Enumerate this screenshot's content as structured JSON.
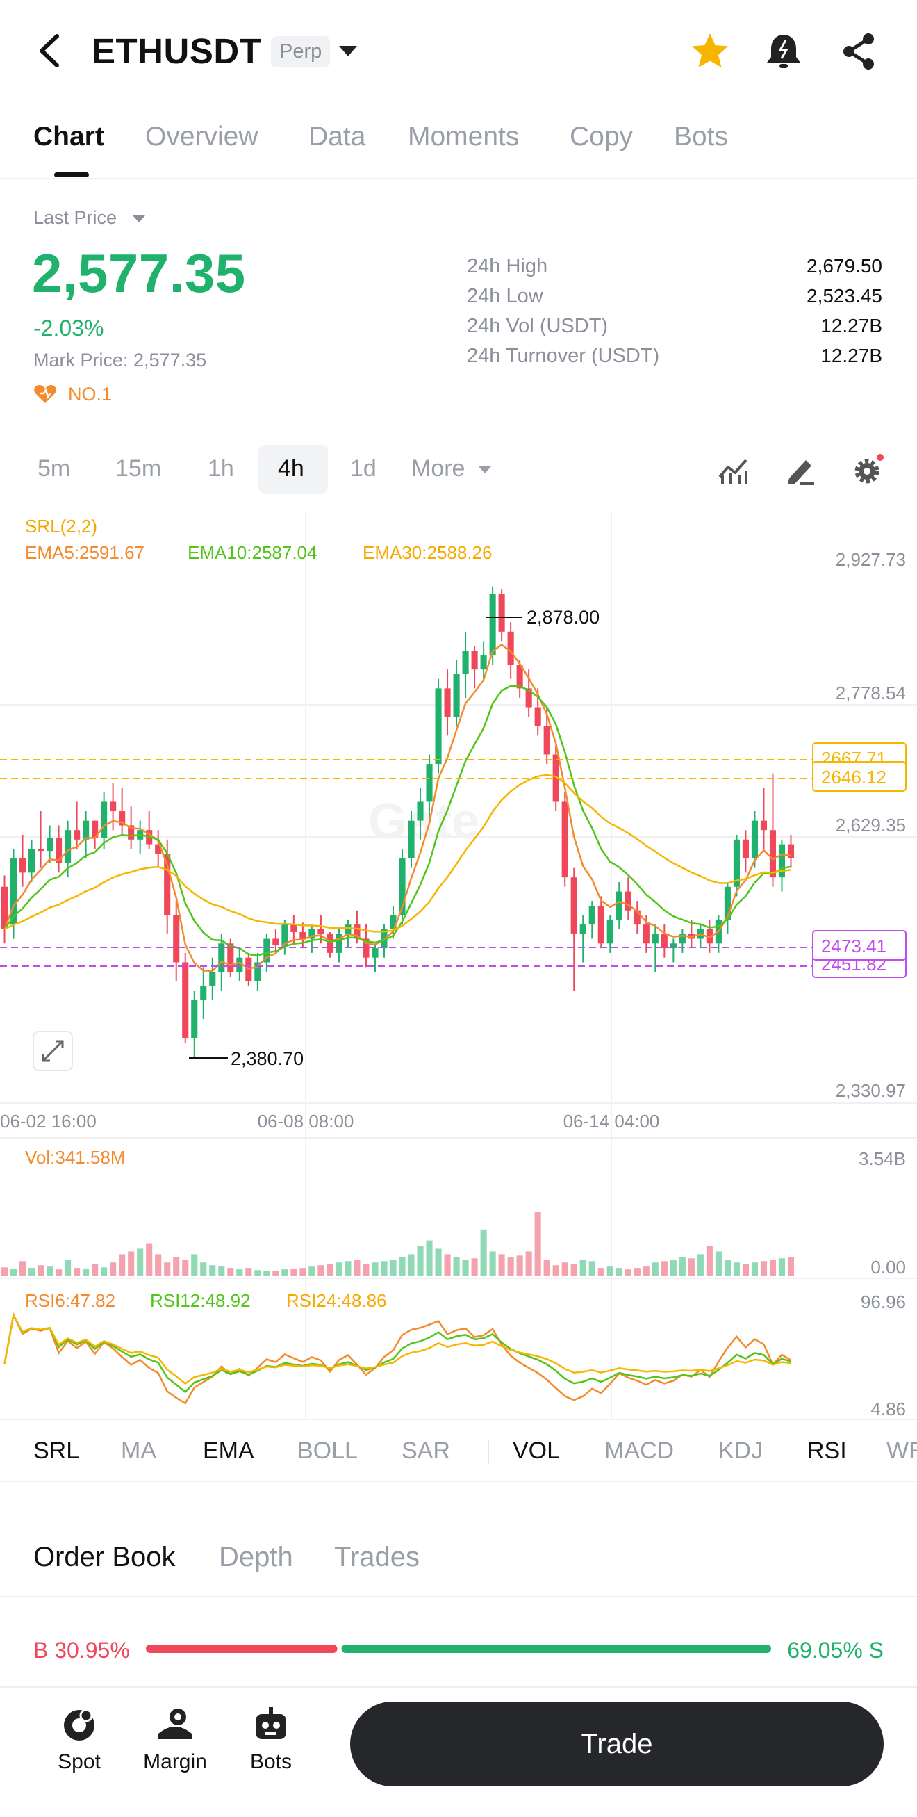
{
  "header": {
    "symbol": "ETHUSDT",
    "badge": "Perp",
    "icons": [
      "back-arrow-icon",
      "chevron-down-icon",
      "star-icon",
      "bell-icon",
      "share-icon"
    ],
    "star_color": "#f7b500"
  },
  "tabs": [
    {
      "label": "Chart",
      "active": true
    },
    {
      "label": "Overview"
    },
    {
      "label": "Data"
    },
    {
      "label": "Moments"
    },
    {
      "label": "Copy"
    },
    {
      "label": "Bots"
    }
  ],
  "price": {
    "label": "Last Price",
    "last": "2,577.35",
    "change": "-2.03%",
    "mark": "Mark Price: 2,577.35",
    "rank": "NO.1",
    "up_color": "#20b26c",
    "down_color": "#f0485a"
  },
  "stats": [
    {
      "label": "24h High",
      "value": "2,679.50"
    },
    {
      "label": "24h Low",
      "value": "2,523.45"
    },
    {
      "label": "24h Vol (USDT)",
      "value": "12.27B"
    },
    {
      "label": "24h Turnover (USDT)",
      "value": "12.27B"
    }
  ],
  "intervals": {
    "items": [
      "5m",
      "15m",
      "1h",
      "4h",
      "1d",
      "More"
    ],
    "active": "4h",
    "tool_icons": [
      "indicator-icon",
      "draw-pen-icon",
      "settings-gear-icon"
    ]
  },
  "chart": {
    "indicator_title": "SRL(2,2)",
    "ema5": "EMA5:2591.67",
    "ema10": "EMA10:2587.04",
    "ema30": "EMA30:2588.26",
    "high_label": "2,878.00",
    "low_label": "2,380.70",
    "y_ticks": [
      "2,927.73",
      "2,778.54",
      "2,629.35",
      "2,330.97"
    ],
    "srl_upper": [
      "2667.71",
      "2646.12"
    ],
    "srl_lower": [
      "2473.41",
      "2451.82"
    ],
    "x_ticks": [
      "06-02 16:00",
      "06-08 08:00",
      "06-14 04:00"
    ],
    "watermark": "Gate",
    "vol_label": "Vol:341.58M",
    "vol_ticks": [
      "3.54B",
      "0.00"
    ],
    "rsi6": "RSI6:47.82",
    "rsi12": "RSI12:48.92",
    "rsi24": "RSI24:48.86",
    "rsi_ticks": [
      "96.96",
      "4.86"
    ]
  },
  "chart_data": {
    "type": "candlestick",
    "interval": "4h",
    "ylim": [
      2330.97,
      2927.73
    ],
    "x_ticks": [
      "06-02 16:00",
      "06-08 08:00",
      "06-14 04:00"
    ],
    "ohlc": [
      [
        2560,
        2572,
        2500,
        2515
      ],
      [
        2520,
        2600,
        2505,
        2590
      ],
      [
        2590,
        2615,
        2560,
        2575
      ],
      [
        2575,
        2610,
        2565,
        2600
      ],
      [
        2600,
        2640,
        2580,
        2598
      ],
      [
        2598,
        2625,
        2585,
        2612
      ],
      [
        2612,
        2625,
        2575,
        2585
      ],
      [
        2585,
        2630,
        2570,
        2620
      ],
      [
        2620,
        2650,
        2600,
        2610
      ],
      [
        2610,
        2640,
        2590,
        2630
      ],
      [
        2630,
        2625,
        2600,
        2612
      ],
      [
        2612,
        2660,
        2600,
        2650
      ],
      [
        2650,
        2670,
        2620,
        2640
      ],
      [
        2640,
        2665,
        2615,
        2625
      ],
      [
        2625,
        2645,
        2600,
        2610
      ],
      [
        2610,
        2630,
        2595,
        2620
      ],
      [
        2620,
        2640,
        2600,
        2605
      ],
      [
        2605,
        2620,
        2580,
        2595
      ],
      [
        2595,
        2610,
        2510,
        2530
      ],
      [
        2530,
        2545,
        2460,
        2480
      ],
      [
        2480,
        2490,
        2395,
        2400
      ],
      [
        2400,
        2450,
        2380,
        2440
      ],
      [
        2440,
        2475,
        2420,
        2455
      ],
      [
        2455,
        2485,
        2440,
        2470
      ],
      [
        2470,
        2510,
        2450,
        2500
      ],
      [
        2500,
        2505,
        2465,
        2470
      ],
      [
        2470,
        2495,
        2460,
        2485
      ],
      [
        2485,
        2490,
        2455,
        2460
      ],
      [
        2460,
        2490,
        2450,
        2480
      ],
      [
        2480,
        2510,
        2470,
        2505
      ],
      [
        2505,
        2515,
        2490,
        2498
      ],
      [
        2498,
        2525,
        2488,
        2520
      ],
      [
        2520,
        2530,
        2500,
        2512
      ],
      [
        2512,
        2522,
        2495,
        2505
      ],
      [
        2505,
        2520,
        2490,
        2515
      ],
      [
        2515,
        2530,
        2500,
        2510
      ],
      [
        2510,
        2512,
        2485,
        2490
      ],
      [
        2490,
        2515,
        2480,
        2510
      ],
      [
        2510,
        2525,
        2495,
        2520
      ],
      [
        2520,
        2535,
        2500,
        2505
      ],
      [
        2505,
        2520,
        2475,
        2485
      ],
      [
        2485,
        2500,
        2470,
        2495
      ],
      [
        2495,
        2520,
        2485,
        2515
      ],
      [
        2515,
        2540,
        2505,
        2530
      ],
      [
        2530,
        2600,
        2520,
        2590
      ],
      [
        2590,
        2640,
        2580,
        2630
      ],
      [
        2630,
        2665,
        2610,
        2650
      ],
      [
        2650,
        2700,
        2630,
        2690
      ],
      [
        2690,
        2780,
        2680,
        2770
      ],
      [
        2770,
        2790,
        2720,
        2740
      ],
      [
        2740,
        2800,
        2730,
        2785
      ],
      [
        2785,
        2830,
        2760,
        2810
      ],
      [
        2810,
        2815,
        2770,
        2790
      ],
      [
        2790,
        2820,
        2780,
        2805
      ],
      [
        2805,
        2878,
        2795,
        2870
      ],
      [
        2870,
        2875,
        2820,
        2830
      ],
      [
        2830,
        2840,
        2780,
        2795
      ],
      [
        2795,
        2800,
        2760,
        2770
      ],
      [
        2770,
        2790,
        2740,
        2750
      ],
      [
        2750,
        2770,
        2720,
        2730
      ],
      [
        2730,
        2750,
        2690,
        2700
      ],
      [
        2700,
        2710,
        2640,
        2650
      ],
      [
        2650,
        2660,
        2560,
        2570
      ],
      [
        2570,
        2580,
        2450,
        2510
      ],
      [
        2510,
        2530,
        2480,
        2520
      ],
      [
        2520,
        2545,
        2505,
        2540
      ],
      [
        2540,
        2550,
        2495,
        2500
      ],
      [
        2500,
        2530,
        2490,
        2525
      ],
      [
        2525,
        2565,
        2515,
        2555
      ],
      [
        2555,
        2570,
        2525,
        2535
      ],
      [
        2535,
        2545,
        2510,
        2520
      ],
      [
        2520,
        2530,
        2490,
        2500
      ],
      [
        2500,
        2520,
        2470,
        2510
      ],
      [
        2510,
        2520,
        2485,
        2495
      ],
      [
        2495,
        2505,
        2480,
        2500
      ],
      [
        2500,
        2515,
        2490,
        2510
      ],
      [
        2510,
        2525,
        2495,
        2505
      ],
      [
        2505,
        2520,
        2495,
        2515
      ],
      [
        2515,
        2525,
        2490,
        2500
      ],
      [
        2500,
        2530,
        2490,
        2525
      ],
      [
        2525,
        2565,
        2510,
        2560
      ],
      [
        2560,
        2615,
        2550,
        2610
      ],
      [
        2610,
        2620,
        2575,
        2590
      ],
      [
        2590,
        2640,
        2580,
        2630
      ],
      [
        2630,
        2665,
        2600,
        2620
      ],
      [
        2620,
        2680,
        2560,
        2570
      ],
      [
        2570,
        2610,
        2555,
        2605
      ],
      [
        2605,
        2615,
        2580,
        2590
      ]
    ],
    "volume": [
      0.32,
      0.28,
      0.55,
      0.3,
      0.4,
      0.35,
      0.25,
      0.6,
      0.3,
      0.28,
      0.45,
      0.32,
      0.5,
      0.8,
      0.9,
      1.0,
      1.2,
      0.8,
      0.5,
      0.7,
      0.6,
      0.8,
      0.5,
      0.4,
      0.35,
      0.3,
      0.25,
      0.3,
      0.22,
      0.18,
      0.2,
      0.25,
      0.28,
      0.3,
      0.35,
      0.4,
      0.45,
      0.5,
      0.55,
      0.6,
      0.45,
      0.5,
      0.55,
      0.6,
      0.7,
      0.8,
      1.1,
      1.3,
      1.0,
      0.8,
      0.7,
      0.6,
      0.65,
      1.7,
      0.9,
      0.8,
      0.7,
      0.75,
      0.9,
      2.35,
      0.6,
      0.4,
      0.5,
      0.45,
      0.6,
      0.55,
      0.3,
      0.35,
      0.3,
      0.25,
      0.3,
      0.35,
      0.5,
      0.55,
      0.6,
      0.7,
      0.65,
      0.8,
      1.1,
      0.9,
      0.6,
      0.5,
      0.45,
      0.5,
      0.55,
      0.6,
      0.65,
      0.7
    ],
    "vol_ylim": [
      0,
      3.54
    ],
    "rsi_ylim": [
      4.86,
      96.96
    ]
  },
  "indicator_tabs": [
    {
      "label": "SRL",
      "on": true
    },
    {
      "label": "MA"
    },
    {
      "label": "EMA",
      "on": true
    },
    {
      "label": "BOLL"
    },
    {
      "label": "SAR"
    },
    {
      "label": "VOL",
      "on": true
    },
    {
      "label": "MACD"
    },
    {
      "label": "KDJ"
    },
    {
      "label": "RSI",
      "on": true
    },
    {
      "label": "WR"
    }
  ],
  "orderbook": {
    "tabs": [
      "Order Book",
      "Depth",
      "Trades"
    ],
    "active": "Order Book",
    "buy_label": "B",
    "buy_pct": "30.95%",
    "sell_pct": "69.05%",
    "sell_label": "S",
    "buy_ratio": 0.3095
  },
  "bottom_nav": {
    "items": [
      {
        "label": "Spot",
        "icon": "spot-icon"
      },
      {
        "label": "Margin",
        "icon": "margin-icon"
      },
      {
        "label": "Bots",
        "icon": "bots-icon"
      }
    ],
    "trade_label": "Trade"
  }
}
